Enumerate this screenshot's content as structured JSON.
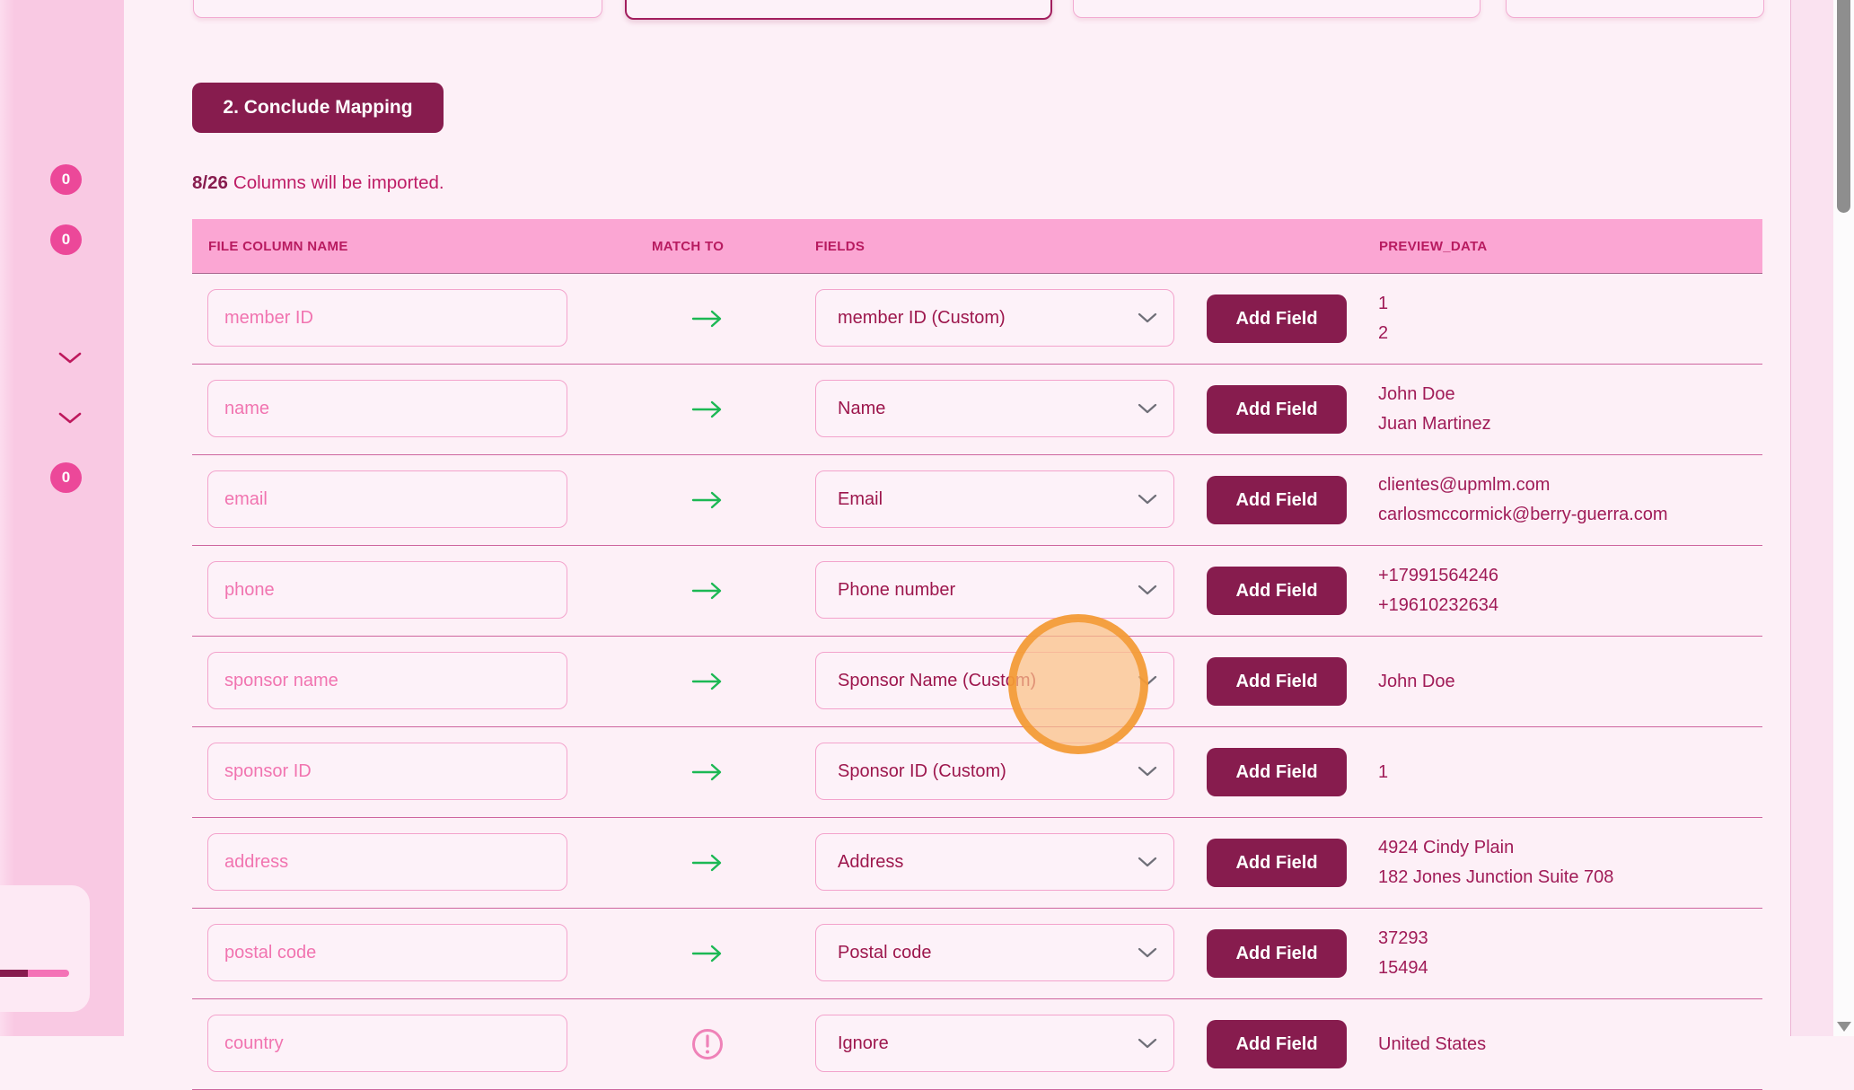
{
  "colors": {
    "accent_dark": "#871c4e",
    "header_pink": "#fba6d3",
    "badge_pink": "#ec4899",
    "arrow_green": "#1cb854",
    "highlight_orange": "#f39428",
    "text_magenta": "#9d174d",
    "placeholder_pink": "#f174b0"
  },
  "sidebar": {
    "badges": [
      "0",
      "0",
      "0"
    ],
    "chevron_icons": [
      "chevron-down",
      "chevron-down"
    ]
  },
  "actions": {
    "conclude_button": "2. Conclude Mapping"
  },
  "summary": {
    "count": "8/26",
    "text": "Columns will be imported."
  },
  "table": {
    "headers": [
      "FILE COLUMN NAME",
      "MATCH TO",
      "FIELDS",
      "PREVIEW_DATA"
    ],
    "add_field_label": "Add Field",
    "rows": [
      {
        "column": "member ID",
        "match": "arrow",
        "field": "member ID (Custom)",
        "preview": [
          "1",
          "2"
        ]
      },
      {
        "column": "name",
        "match": "arrow",
        "field": "Name",
        "preview": [
          "John Doe",
          "Juan Martinez"
        ]
      },
      {
        "column": "email",
        "match": "arrow",
        "field": "Email",
        "preview": [
          "clientes@upmlm.com",
          "carlosmccormick@berry-guerra.com"
        ]
      },
      {
        "column": "phone",
        "match": "arrow",
        "field": "Phone number",
        "preview": [
          "+17991564246",
          "+19610232634"
        ]
      },
      {
        "column": "sponsor name",
        "match": "arrow",
        "field": "Sponsor Name (Custom)",
        "preview": [
          "John Doe"
        ]
      },
      {
        "column": "sponsor ID",
        "match": "arrow",
        "field": "Sponsor ID (Custom)",
        "preview": [
          "1"
        ]
      },
      {
        "column": "address",
        "match": "arrow",
        "field": "Address",
        "preview": [
          "4924 Cindy Plain",
          "182 Jones Junction Suite 708"
        ]
      },
      {
        "column": "postal code",
        "match": "arrow",
        "field": "Postal code",
        "preview": [
          "37293",
          "15494"
        ]
      },
      {
        "column": "country",
        "match": "warning",
        "field": "Ignore",
        "preview": [
          "United States"
        ]
      }
    ]
  }
}
